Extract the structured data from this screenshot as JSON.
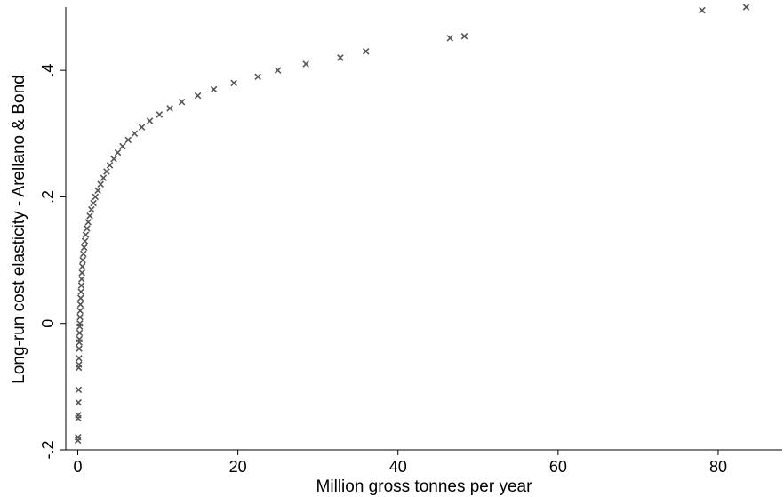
{
  "chart_data": {
    "type": "scatter",
    "xlabel": "Million gross tonnes per year",
    "ylabel": "Long-run cost elasticity - Arellano & Bond",
    "xlim": [
      -1.5,
      88
    ],
    "ylim": [
      -0.2,
      0.5
    ],
    "xticks": [
      0,
      20,
      40,
      60,
      80
    ],
    "xtick_labels": [
      "0",
      "20",
      "40",
      "60",
      "80"
    ],
    "yticks": [
      -0.2,
      0,
      0.2,
      0.4
    ],
    "ytick_labels": [
      "-.2",
      "0",
      ".2",
      ".4"
    ],
    "grid": false,
    "marker": "x",
    "marker_color": "#555555",
    "series": [
      {
        "points": [
          [
            0.02,
            -0.185
          ],
          [
            0.03,
            -0.18
          ],
          [
            0.05,
            -0.15
          ],
          [
            0.06,
            -0.145
          ],
          [
            0.08,
            -0.125
          ],
          [
            0.1,
            -0.105
          ],
          [
            0.12,
            -0.07
          ],
          [
            0.14,
            -0.065
          ],
          [
            0.15,
            -0.055
          ],
          [
            0.17,
            -0.04
          ],
          [
            0.19,
            -0.03
          ],
          [
            0.2,
            -0.025
          ],
          [
            0.22,
            -0.015
          ],
          [
            0.24,
            -0.005
          ],
          [
            0.26,
            0.0
          ],
          [
            0.28,
            0.01
          ],
          [
            0.3,
            0.02
          ],
          [
            0.33,
            0.03
          ],
          [
            0.36,
            0.04
          ],
          [
            0.4,
            0.05
          ],
          [
            0.44,
            0.06
          ],
          [
            0.48,
            0.07
          ],
          [
            0.52,
            0.08
          ],
          [
            0.57,
            0.09
          ],
          [
            0.62,
            0.1
          ],
          [
            0.7,
            0.11
          ],
          [
            0.8,
            0.12
          ],
          [
            0.9,
            0.13
          ],
          [
            1.0,
            0.14
          ],
          [
            1.15,
            0.15
          ],
          [
            1.3,
            0.16
          ],
          [
            1.5,
            0.17
          ],
          [
            1.7,
            0.18
          ],
          [
            1.95,
            0.19
          ],
          [
            2.2,
            0.2
          ],
          [
            2.5,
            0.21
          ],
          [
            2.85,
            0.22
          ],
          [
            3.2,
            0.23
          ],
          [
            3.6,
            0.24
          ],
          [
            4.0,
            0.25
          ],
          [
            4.5,
            0.26
          ],
          [
            5.0,
            0.27
          ],
          [
            5.6,
            0.28
          ],
          [
            6.3,
            0.29
          ],
          [
            7.1,
            0.3
          ],
          [
            8.0,
            0.31
          ],
          [
            9.0,
            0.32
          ],
          [
            10.2,
            0.33
          ],
          [
            11.5,
            0.34
          ],
          [
            13.0,
            0.35
          ],
          [
            15.0,
            0.36
          ],
          [
            17.0,
            0.37
          ],
          [
            19.5,
            0.38
          ],
          [
            22.5,
            0.39
          ],
          [
            25.0,
            0.4
          ],
          [
            28.5,
            0.41
          ],
          [
            32.8,
            0.42
          ],
          [
            36.0,
            0.43
          ],
          [
            46.5,
            0.451
          ],
          [
            48.3,
            0.454
          ],
          [
            78.0,
            0.495
          ],
          [
            83.5,
            0.5
          ]
        ]
      }
    ]
  }
}
